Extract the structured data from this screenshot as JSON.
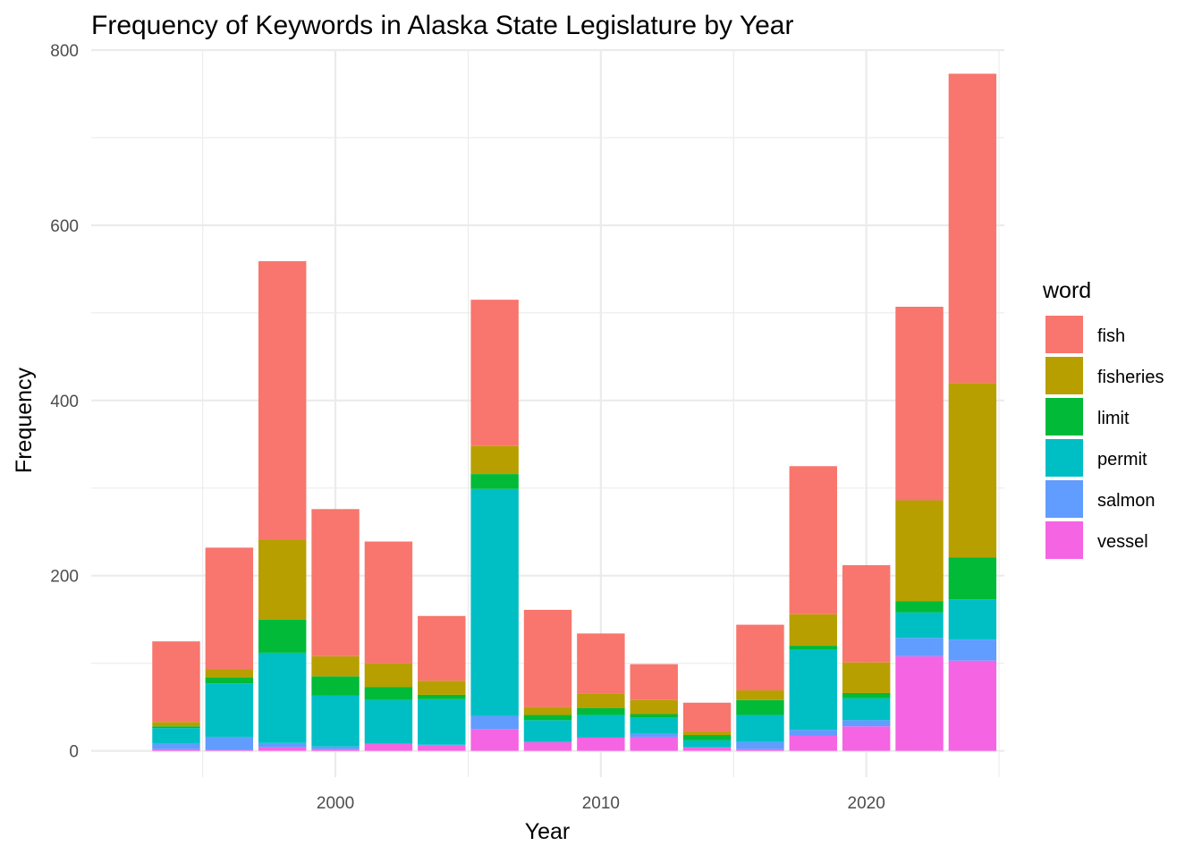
{
  "chart_data": {
    "type": "bar",
    "stacked": true,
    "title": "Frequency of Keywords in Alaska State Legislature by Year",
    "xlabel": "Year",
    "ylabel": "Frequency",
    "legend_title": "word",
    "legend_position": "right",
    "grid": true,
    "xlim": [
      1990.8,
      2025.2
    ],
    "ylim": [
      -30,
      800
    ],
    "x_ticks": [
      2000,
      2010,
      2020
    ],
    "y_ticks": [
      0,
      200,
      400,
      600,
      800
    ],
    "x": [
      1994,
      1996,
      1998,
      2000,
      2002,
      2004,
      2006,
      2008,
      2010,
      2012,
      2014,
      2016,
      2018,
      2020,
      2022,
      2024
    ],
    "colors": {
      "fish": "#F8766D",
      "fisheries": "#B79F00",
      "limit": "#00BA38",
      "permit": "#00BFC4",
      "salmon": "#619CFF",
      "vessel": "#F564E3"
    },
    "series": [
      {
        "name": "vessel",
        "values": [
          2,
          1,
          4,
          2,
          8,
          6,
          25,
          10,
          15,
          16,
          4,
          2,
          17,
          28,
          108,
          103
        ]
      },
      {
        "name": "salmon",
        "values": [
          6,
          15,
          5,
          3,
          0,
          1,
          15,
          0,
          0,
          4,
          0,
          8,
          7,
          7,
          21,
          24
        ]
      },
      {
        "name": "permit",
        "values": [
          18,
          61,
          103,
          58,
          50,
          52,
          259,
          25,
          26,
          18,
          8,
          31,
          92,
          25,
          29,
          46
        ]
      },
      {
        "name": "limit",
        "values": [
          2,
          7,
          38,
          22,
          15,
          5,
          17,
          6,
          8,
          4,
          6,
          17,
          4,
          6,
          13,
          48
        ]
      },
      {
        "name": "fisheries",
        "values": [
          5,
          9,
          91,
          23,
          27,
          16,
          32,
          9,
          16,
          16,
          4,
          11,
          36,
          35,
          115,
          199
        ]
      },
      {
        "name": "fish",
        "values": [
          92,
          139,
          318,
          168,
          139,
          74,
          167,
          111,
          69,
          41,
          33,
          75,
          169,
          111,
          221,
          353
        ]
      }
    ],
    "legend_order": [
      "fish",
      "fisheries",
      "limit",
      "permit",
      "salmon",
      "vessel"
    ]
  }
}
